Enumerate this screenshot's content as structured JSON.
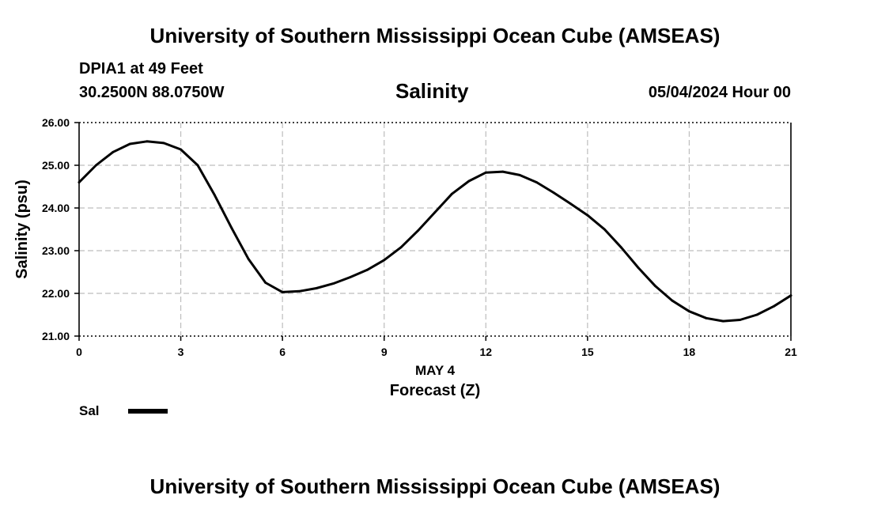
{
  "header": {
    "title": "University of Southern Mississippi Ocean Cube (AMSEAS)",
    "station": "DPIA1 at 49 Feet",
    "coords": "30.2500N  88.0750W",
    "variable": "Salinity",
    "datetime": "05/04/2024 Hour 00"
  },
  "footer": {
    "title": "University of Southern Mississippi Ocean Cube (AMSEAS)"
  },
  "legend": {
    "label": "Sal",
    "color": "#000000"
  },
  "chart_data": {
    "type": "line",
    "title": "Salinity",
    "xlabel": "Forecast (Z)",
    "xsublabel": "MAY 4",
    "ylabel": "Salinity (psu)",
    "xlim": [
      0,
      21
    ],
    "ylim": [
      21,
      26
    ],
    "xticks": [
      0,
      3,
      6,
      9,
      12,
      15,
      18,
      21
    ],
    "xtick_labels": [
      "0",
      "3",
      "6",
      "9",
      "12",
      "15",
      "18",
      "21"
    ],
    "yticks": [
      21,
      22,
      23,
      24,
      25,
      26
    ],
    "ytick_labels": [
      "21.00",
      "22.00",
      "23.00",
      "24.00",
      "25.00",
      "26.00"
    ],
    "grid": true,
    "series": [
      {
        "name": "Sal",
        "x": [
          0,
          0.5,
          1,
          1.5,
          2,
          2.5,
          3,
          3.5,
          4,
          4.5,
          5,
          5.5,
          6,
          6.5,
          7,
          7.5,
          8,
          8.5,
          9,
          9.5,
          10,
          10.5,
          11,
          11.5,
          12,
          12.5,
          13,
          13.5,
          14,
          14.5,
          15,
          15.5,
          16,
          16.5,
          17,
          17.5,
          18,
          18.5,
          19,
          19.5,
          20,
          20.5,
          21
        ],
        "values": [
          24.6,
          25.0,
          25.31,
          25.5,
          25.56,
          25.52,
          25.37,
          25.0,
          24.3,
          23.53,
          22.8,
          22.25,
          22.03,
          22.05,
          22.12,
          22.23,
          22.38,
          22.55,
          22.78,
          23.08,
          23.47,
          23.9,
          24.33,
          24.63,
          24.83,
          24.85,
          24.77,
          24.6,
          24.36,
          24.1,
          23.83,
          23.5,
          23.07,
          22.6,
          22.17,
          21.83,
          21.58,
          21.42,
          21.35,
          21.38,
          21.5,
          21.7,
          21.95
        ]
      }
    ]
  }
}
